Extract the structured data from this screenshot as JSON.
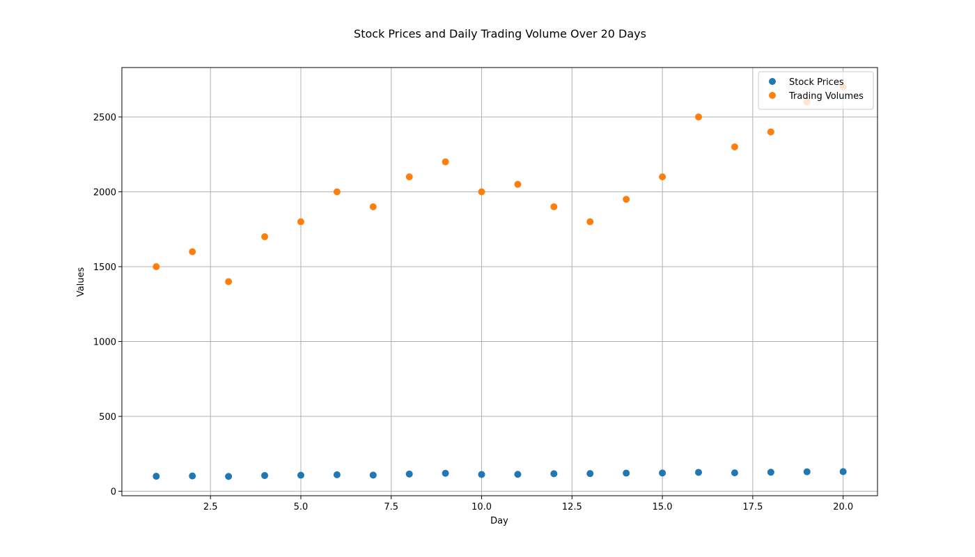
{
  "chart_data": {
    "type": "scatter",
    "title": "Stock Prices and Daily Trading Volume Over 20 Days",
    "xlabel": "Day",
    "ylabel": "Values",
    "x": [
      1,
      2,
      3,
      4,
      5,
      6,
      7,
      8,
      9,
      10,
      11,
      12,
      13,
      14,
      15,
      16,
      17,
      18,
      19,
      20
    ],
    "series": [
      {
        "name": "Stock Prices",
        "color": "#1f77b4",
        "values": [
          100,
          102,
          99,
          105,
          107,
          110,
          108,
          115,
          120,
          112,
          113,
          117,
          118,
          121,
          122,
          126,
          123,
          127,
          130,
          131
        ]
      },
      {
        "name": "Trading Volumes",
        "color": "#ff7f0e",
        "values": [
          1500,
          1600,
          1400,
          1700,
          1800,
          2000,
          1900,
          2100,
          2200,
          2000,
          2050,
          1900,
          1800,
          1950,
          2100,
          2500,
          2300,
          2400,
          2600,
          2700
        ]
      }
    ],
    "xlim": [
      0.05,
      20.95
    ],
    "ylim": [
      -30,
      2830
    ],
    "xticks": [
      2.5,
      5.0,
      7.5,
      10.0,
      12.5,
      15.0,
      17.5,
      20.0
    ],
    "xtick_labels": [
      "2.5",
      "5.0",
      "7.5",
      "10.0",
      "12.5",
      "15.0",
      "17.5",
      "20.0"
    ],
    "yticks": [
      0,
      500,
      1000,
      1500,
      2000,
      2500
    ],
    "ytick_labels": [
      "0",
      "500",
      "1000",
      "1500",
      "2000",
      "2500"
    ],
    "grid": true,
    "legend_position": "top-right"
  }
}
